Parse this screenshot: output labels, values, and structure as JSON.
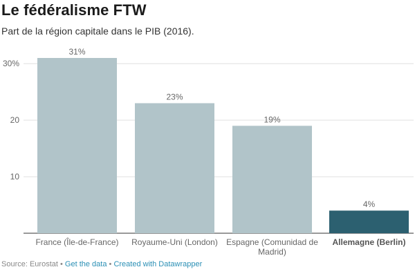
{
  "header": {
    "title": "Le fédéralisme FTW",
    "subtitle": "Part de la région capitale dans le PIB (2016)."
  },
  "footer": {
    "source_label": "Source: Eurostat",
    "separator": "•",
    "get_data_label": "Get the data",
    "created_with_label": "Created with Datawrapper"
  },
  "chart_data": {
    "type": "bar",
    "title": "Le fédéralisme FTW",
    "subtitle": "Part de la région capitale dans le PIB (2016).",
    "categories": [
      [
        "France (Île-de-France)"
      ],
      [
        "Royaume-Uni (London)"
      ],
      [
        "Espagne (Comunidad de",
        "Madrid)"
      ],
      [
        "Allemagne (Berlin)"
      ]
    ],
    "values": [
      31,
      23,
      19,
      4
    ],
    "value_labels": [
      "31%",
      "23%",
      "19%",
      "4%"
    ],
    "highlighted_index": 3,
    "ylim": [
      0,
      31
    ],
    "yticks": [
      10,
      20,
      30
    ],
    "ytick_labels": [
      "10",
      "20",
      "30%"
    ],
    "grid": true,
    "colors": {
      "bar": "#b1c4c9",
      "bar_highlight": "#2c6070",
      "grid": "#e0e0e0",
      "axis": "#333333",
      "tick_label": "#666666",
      "value_label": "#666666",
      "category_label": "#666666",
      "category_label_highlight": "#555555"
    }
  }
}
